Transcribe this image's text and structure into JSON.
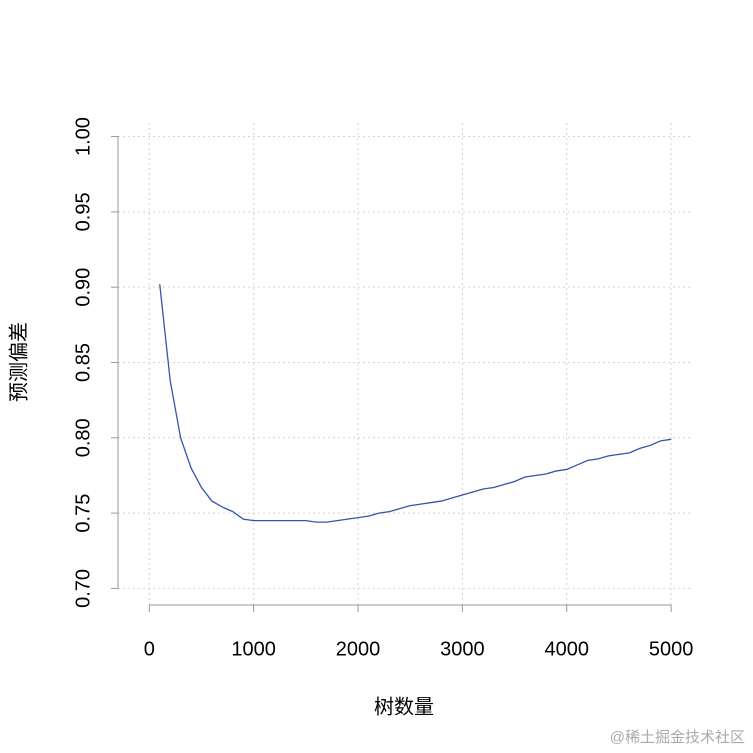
{
  "chart_data": {
    "type": "line",
    "x_label": "树数量",
    "y_label": "预测偏差",
    "watermark": "@稀土掘金技术社区",
    "x": [
      100,
      200,
      300,
      400,
      500,
      600,
      700,
      800,
      900,
      1000,
      1100,
      1200,
      1300,
      1400,
      1500,
      1600,
      1700,
      1800,
      1900,
      2000,
      2100,
      2200,
      2300,
      2400,
      2500,
      2600,
      2700,
      2800,
      2900,
      3000,
      3100,
      3200,
      3300,
      3400,
      3500,
      3600,
      3700,
      3800,
      3900,
      4000,
      4100,
      4200,
      4300,
      4400,
      4500,
      4600,
      4700,
      4800,
      4900,
      5000
    ],
    "series": [
      {
        "color": "#3355aa",
        "values": [
          0.902,
          0.838,
          0.8,
          0.78,
          0.767,
          0.758,
          0.754,
          0.751,
          0.746,
          0.745,
          0.745,
          0.745,
          0.745,
          0.745,
          0.745,
          0.744,
          0.744,
          0.745,
          0.746,
          0.747,
          0.748,
          0.75,
          0.751,
          0.753,
          0.755,
          0.756,
          0.757,
          0.758,
          0.76,
          0.762,
          0.764,
          0.766,
          0.767,
          0.769,
          0.771,
          0.774,
          0.775,
          0.776,
          0.778,
          0.779,
          0.782,
          0.785,
          0.786,
          0.788,
          0.789,
          0.79,
          0.793,
          0.795,
          0.798,
          0.799
        ]
      }
    ],
    "xlim": [
      -300,
      5200
    ],
    "ylim": [
      0.689,
      1.009
    ],
    "xticks": [
      0,
      1000,
      2000,
      3000,
      4000,
      5000
    ],
    "yticks": [
      {
        "value": 0.7,
        "label": "0.70"
      },
      0.75,
      {
        "value": 0.8,
        "label": "0.80"
      },
      0.85,
      {
        "value": 0.9,
        "label": "0.90"
      },
      0.95,
      {
        "value": 1.0,
        "label": "1.00"
      }
    ],
    "grid": true
  }
}
